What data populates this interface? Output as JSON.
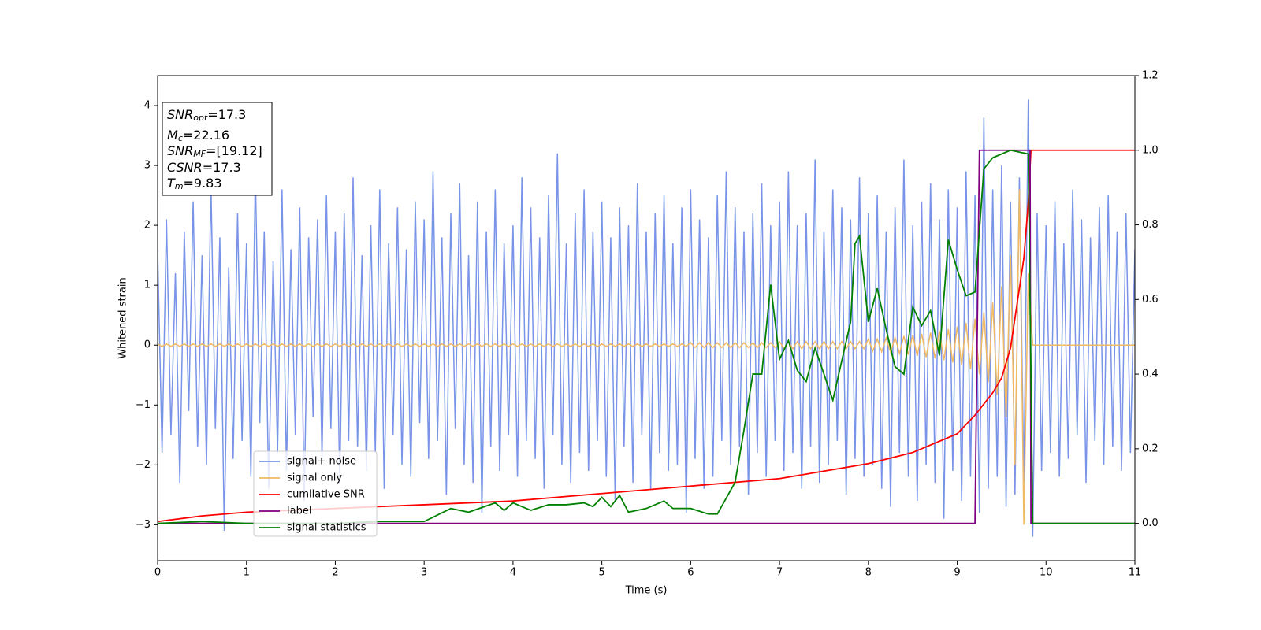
{
  "chart_data": {
    "type": "line",
    "xlabel": "Time (s)",
    "ylabel": "Whitened strain",
    "xlim": [
      0,
      11
    ],
    "xticks": [
      0,
      1,
      2,
      3,
      4,
      5,
      6,
      7,
      8,
      9,
      10,
      11
    ],
    "ylim": [
      -3.6,
      4.5
    ],
    "yticks": [
      {
        "value": -3,
        "label": "−3"
      },
      {
        "value": -2,
        "label": "−2"
      },
      {
        "value": -1,
        "label": "−1"
      },
      0,
      1,
      2,
      3,
      4
    ],
    "y2lim": [
      -0.1,
      1.2
    ],
    "y2ticks": [
      {
        "value": 0,
        "label": "0.0"
      },
      0.2,
      0.4,
      0.6,
      0.8,
      {
        "value": 1,
        "label": "1.0"
      },
      1.2
    ],
    "annotations": [
      {
        "main": "SNR",
        "sub": "opt",
        "rest": "=17.3"
      },
      {
        "main": "M",
        "sub": "c",
        "rest": "=22.16"
      },
      {
        "main": "SNR",
        "sub": "MF",
        "rest": "=[19.12]"
      },
      {
        "main": "CSNR",
        "rest": "=17.3"
      },
      {
        "main": "T",
        "sub": "m",
        "rest": "=9.83"
      }
    ],
    "x": [
      0,
      0.05,
      0.1,
      0.15,
      0.2,
      0.25,
      0.3,
      0.35,
      0.4,
      0.45,
      0.5,
      0.55,
      0.6,
      0.65,
      0.7,
      0.75,
      0.8,
      0.85,
      0.9,
      0.95,
      1,
      1.05,
      1.1,
      1.15,
      1.2,
      1.25,
      1.3,
      1.35,
      1.4,
      1.45,
      1.5,
      1.55,
      1.6,
      1.65,
      1.7,
      1.75,
      1.8,
      1.85,
      1.9,
      1.95,
      2,
      2.05,
      2.1,
      2.15,
      2.2,
      2.25,
      2.3,
      2.35,
      2.4,
      2.45,
      2.5,
      2.55,
      2.6,
      2.65,
      2.7,
      2.75,
      2.8,
      2.85,
      2.9,
      2.95,
      3,
      3.05,
      3.1,
      3.15,
      3.2,
      3.25,
      3.3,
      3.35,
      3.4,
      3.45,
      3.5,
      3.55,
      3.6,
      3.65,
      3.7,
      3.75,
      3.8,
      3.85,
      3.9,
      3.95,
      4,
      4.05,
      4.1,
      4.15,
      4.2,
      4.25,
      4.3,
      4.35,
      4.4,
      4.45,
      4.5,
      4.55,
      4.6,
      4.65,
      4.7,
      4.75,
      4.8,
      4.85,
      4.9,
      4.95,
      5,
      5.05,
      5.1,
      5.15,
      5.2,
      5.25,
      5.3,
      5.35,
      5.4,
      5.45,
      5.5,
      5.55,
      5.6,
      5.65,
      5.7,
      5.75,
      5.8,
      5.85,
      5.9,
      5.95,
      6,
      6.05,
      6.1,
      6.15,
      6.2,
      6.25,
      6.3,
      6.35,
      6.4,
      6.45,
      6.5,
      6.55,
      6.6,
      6.65,
      6.7,
      6.75,
      6.8,
      6.85,
      6.9,
      6.95,
      7,
      7.05,
      7.1,
      7.15,
      7.2,
      7.25,
      7.3,
      7.35,
      7.4,
      7.45,
      7.5,
      7.55,
      7.6,
      7.65,
      7.7,
      7.75,
      7.8,
      7.85,
      7.9,
      7.95,
      8,
      8.05,
      8.1,
      8.15,
      8.2,
      8.25,
      8.3,
      8.35,
      8.4,
      8.45,
      8.5,
      8.55,
      8.6,
      8.65,
      8.7,
      8.75,
      8.8,
      8.85,
      8.9,
      8.95,
      9,
      9.05,
      9.1,
      9.15,
      9.2,
      9.25,
      9.3,
      9.35,
      9.4,
      9.45,
      9.5,
      9.55,
      9.6,
      9.65,
      9.7,
      9.75,
      9.8,
      9.85,
      9.9,
      9.95,
      10,
      10.05,
      10.1,
      10.15,
      10.2,
      10.25,
      10.3,
      10.35,
      10.4,
      10.45,
      10.5,
      10.55,
      10.6,
      10.65,
      10.7,
      10.75,
      10.8,
      10.85,
      10.9,
      10.95,
      11
    ],
    "series": [
      {
        "name": "signal+ noise",
        "color": "#7893e8",
        "values": [
          1.6,
          -1.8,
          2.1,
          -1.5,
          1.2,
          -2.3,
          1.9,
          -1.1,
          2.4,
          -1.7,
          1.5,
          -2.0,
          2.7,
          -1.4,
          1.8,
          -3.1,
          1.3,
          -1.9,
          2.2,
          -1.6,
          1.7,
          -2.2,
          2.9,
          -1.3,
          1.9,
          -2.4,
          1.4,
          -1.8,
          2.6,
          -2.1,
          1.6,
          -1.5,
          2.3,
          -2.6,
          1.8,
          -1.2,
          2.1,
          -1.9,
          2.5,
          -1.4,
          1.9,
          -2.3,
          2.2,
          -1.6,
          2.8,
          -1.7,
          1.5,
          -2.1,
          2.0,
          -1.8,
          2.6,
          -2.4,
          1.7,
          -1.5,
          2.3,
          -2.0,
          1.6,
          -2.2,
          2.4,
          -1.3,
          2.1,
          -1.9,
          2.9,
          -1.6,
          1.8,
          -2.5,
          2.2,
          -1.4,
          2.7,
          -2.0,
          1.5,
          -2.3,
          2.4,
          -2.8,
          1.9,
          -1.7,
          2.6,
          -2.1,
          1.7,
          -1.5,
          2.0,
          -2.2,
          2.8,
          -1.6,
          2.3,
          -1.9,
          1.8,
          -2.4,
          2.5,
          -1.5,
          3.2,
          -2.0,
          1.7,
          -2.3,
          2.2,
          -1.8,
          2.6,
          -2.1,
          1.9,
          -1.6,
          2.4,
          -2.2,
          1.8,
          -2.6,
          2.3,
          -1.7,
          2.0,
          -2.3,
          2.7,
          -1.5,
          1.9,
          -2.4,
          2.2,
          -1.8,
          2.5,
          -2.1,
          1.7,
          -2.0,
          2.3,
          -2.8,
          2.6,
          -1.9,
          2.1,
          -2.4,
          1.8,
          -2.2,
          2.5,
          -1.6,
          2.9,
          -2.0,
          2.3,
          -1.7,
          1.9,
          -2.5,
          2.2,
          -1.8,
          2.7,
          -2.2,
          2.0,
          -1.6,
          2.4,
          -2.1,
          2.9,
          -1.8,
          2.0,
          -2.4,
          2.2,
          -1.7,
          3.1,
          -2.3,
          1.9,
          -2.0,
          2.6,
          -1.6,
          2.3,
          -2.5,
          2.1,
          -1.9,
          2.8,
          -2.2,
          2.2,
          -2.0,
          2.5,
          -2.4,
          1.9,
          -2.7,
          2.3,
          -1.8,
          3.1,
          -2.2,
          2.0,
          -2.6,
          2.4,
          -2.0,
          2.7,
          -2.3,
          2.1,
          -2.9,
          2.6,
          -2.1,
          2.3,
          -2.6,
          2.9,
          -2.2,
          2.5,
          -2.8,
          3.8,
          -2.4,
          2.6,
          -2.2,
          3.0,
          -2.7,
          2.4,
          -2.5,
          2.8,
          -2.3,
          4.1,
          -3.2,
          2.2,
          -2.1,
          2.0,
          -1.8,
          2.4,
          -2.2,
          1.7,
          -1.9,
          2.6,
          -1.5,
          2.1,
          -2.3,
          1.8,
          -1.6,
          2.3,
          -2.0,
          2.5,
          -1.7,
          1.9,
          -2.1,
          2.2,
          -1.8,
          1.6
        ]
      },
      {
        "name": "signal only",
        "color": "#f0b964",
        "values": [
          0.02,
          -0.02,
          0.02,
          -0.02,
          0.02,
          -0.02,
          0.02,
          -0.02,
          0.02,
          -0.02,
          0.02,
          -0.02,
          0.02,
          -0.02,
          0.02,
          -0.02,
          0.02,
          -0.02,
          0.02,
          -0.02,
          0.02,
          -0.02,
          0.02,
          -0.02,
          0.02,
          -0.02,
          0.02,
          -0.02,
          0.02,
          -0.02,
          0.02,
          -0.02,
          0.02,
          -0.02,
          0.02,
          -0.02,
          0.02,
          -0.02,
          0.02,
          -0.02,
          0.02,
          -0.02,
          0.02,
          -0.02,
          0.02,
          -0.02,
          0.02,
          -0.02,
          0.02,
          -0.02,
          0.02,
          -0.02,
          0.02,
          -0.02,
          0.02,
          -0.02,
          0.02,
          -0.02,
          0.02,
          -0.02,
          0.02,
          -0.02,
          0.02,
          -0.02,
          0.02,
          -0.02,
          0.02,
          -0.02,
          0.02,
          -0.02,
          0.02,
          -0.02,
          0.02,
          -0.02,
          0.02,
          -0.02,
          0.02,
          -0.02,
          0.02,
          -0.02,
          0.02,
          -0.02,
          0.02,
          -0.02,
          0.02,
          -0.02,
          0.02,
          -0.02,
          0.02,
          -0.02,
          0.02,
          -0.02,
          0.02,
          -0.02,
          0.02,
          -0.02,
          0.02,
          -0.02,
          0.02,
          -0.02,
          0.02,
          -0.02,
          0.02,
          -0.02,
          0.02,
          -0.02,
          0.02,
          -0.02,
          0.02,
          -0.02,
          0.02,
          -0.02,
          0.02,
          -0.02,
          0.02,
          -0.02,
          0.02,
          -0.02,
          0.02,
          -0.02,
          0.04,
          -0.04,
          0.04,
          -0.04,
          0.04,
          -0.04,
          0.04,
          -0.04,
          0.04,
          -0.04,
          0.04,
          -0.04,
          0.04,
          -0.04,
          0.04,
          -0.04,
          0.04,
          -0.04,
          0.04,
          -0.04,
          0.06,
          -0.06,
          0.06,
          -0.06,
          0.06,
          -0.06,
          0.06,
          -0.06,
          0.06,
          -0.06,
          0.06,
          -0.06,
          0.06,
          -0.06,
          0.06,
          -0.06,
          0.06,
          -0.06,
          0.06,
          -0.06,
          0.1,
          -0.1,
          0.1,
          -0.11,
          0.12,
          -0.12,
          0.13,
          -0.14,
          0.15,
          -0.16,
          0.17,
          -0.18,
          0.19,
          -0.2,
          0.21,
          -0.22,
          0.24,
          -0.25,
          0.27,
          -0.29,
          0.31,
          -0.34,
          0.37,
          -0.4,
          0.44,
          -0.49,
          0.55,
          -0.62,
          0.71,
          -0.83,
          0.98,
          -1.2,
          1.5,
          -2.0,
          2.6,
          -3.0,
          1.2,
          0,
          0,
          0,
          0,
          0,
          0,
          0,
          0,
          0,
          0,
          0,
          0,
          0,
          0,
          0,
          0,
          0,
          0,
          0,
          0,
          0,
          0,
          0,
          0
        ]
      },
      {
        "name": "cumilative SNR",
        "color": "#ff0000",
        "axis": "y2",
        "x": [
          0,
          0.5,
          1,
          2,
          3,
          4,
          5,
          6,
          7,
          7.5,
          8,
          8.5,
          9,
          9.2,
          9.4,
          9.5,
          9.6,
          9.7,
          9.75,
          9.8,
          9.83,
          10,
          11
        ],
        "values": [
          0.005,
          0.02,
          0.03,
          0.04,
          0.05,
          0.06,
          0.08,
          0.1,
          0.12,
          0.14,
          0.16,
          0.19,
          0.24,
          0.29,
          0.35,
          0.39,
          0.47,
          0.63,
          0.71,
          0.86,
          1,
          1,
          1
        ]
      },
      {
        "name": "label",
        "color": "#800080",
        "axis": "y2",
        "x": [
          0,
          9.2,
          9.25,
          9.82,
          9.83,
          11
        ],
        "values": [
          0,
          0,
          1,
          1,
          0,
          0
        ]
      },
      {
        "name": "signal statistics",
        "color": "#008000",
        "axis": "y2",
        "x": [
          0,
          0.5,
          1,
          2,
          2.5,
          3,
          3.3,
          3.5,
          3.8,
          3.9,
          4,
          4.2,
          4.4,
          4.6,
          4.8,
          4.9,
          5,
          5.1,
          5.2,
          5.3,
          5.5,
          5.7,
          5.8,
          6,
          6.2,
          6.3,
          6.5,
          6.6,
          6.7,
          6.8,
          6.9,
          7,
          7.1,
          7.2,
          7.3,
          7.4,
          7.6,
          7.8,
          7.85,
          7.9,
          8,
          8.1,
          8.2,
          8.3,
          8.4,
          8.5,
          8.6,
          8.7,
          8.8,
          8.9,
          9,
          9.1,
          9.2,
          9.3,
          9.4,
          9.6,
          9.8,
          9.85,
          11
        ],
        "values": [
          0,
          0.005,
          0,
          0,
          0.005,
          0.005,
          0.04,
          0.03,
          0.055,
          0.035,
          0.055,
          0.035,
          0.05,
          0.05,
          0.055,
          0.045,
          0.07,
          0.045,
          0.075,
          0.03,
          0.04,
          0.06,
          0.04,
          0.04,
          0.025,
          0.025,
          0.11,
          0.25,
          0.4,
          0.4,
          0.64,
          0.44,
          0.49,
          0.41,
          0.38,
          0.47,
          0.33,
          0.54,
          0.75,
          0.77,
          0.54,
          0.63,
          0.52,
          0.42,
          0.4,
          0.58,
          0.53,
          0.57,
          0.45,
          0.76,
          0.68,
          0.61,
          0.62,
          0.95,
          0.98,
          1.0,
          0.99,
          0,
          0
        ]
      }
    ]
  }
}
